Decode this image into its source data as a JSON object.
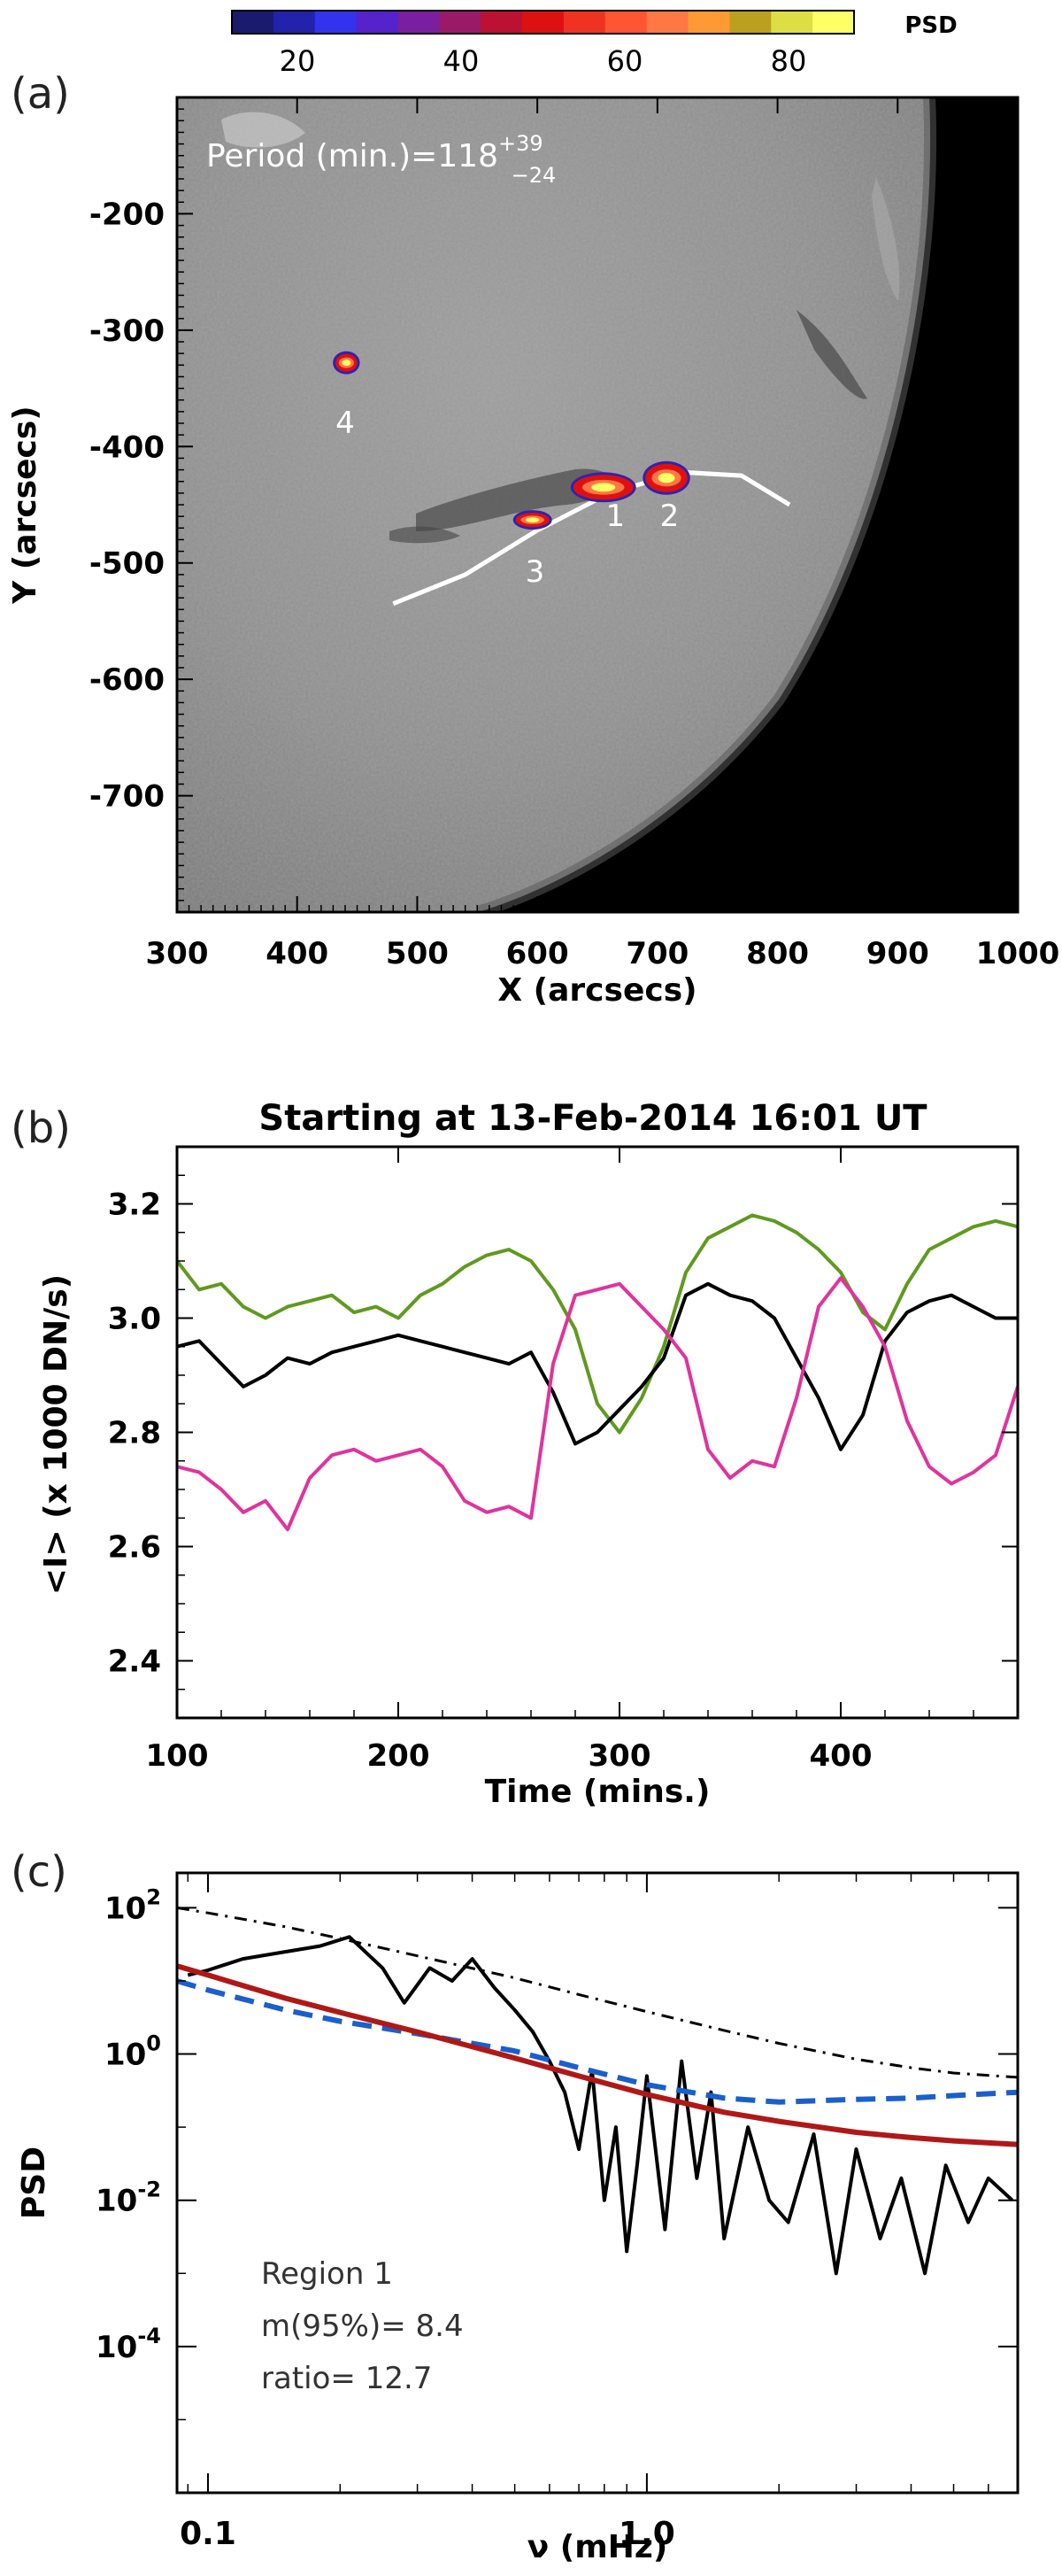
{
  "colorbar": {
    "label": "PSD",
    "ticks": [
      20,
      40,
      60,
      80
    ],
    "range": [
      12,
      88
    ],
    "colors": [
      "#1a1a6e",
      "#2222aa",
      "#3333ee",
      "#5522cc",
      "#7a1fa0",
      "#991a66",
      "#bb1133",
      "#dd1111",
      "#ee3322",
      "#ff5533",
      "#ff7744",
      "#ff9933",
      "#bba020",
      "#dddd44",
      "#ffff66"
    ]
  },
  "panel_a": {
    "panel_label": "(a)",
    "period_prefix": "Period (min.)=118",
    "period_sup": "+39",
    "period_sub": "−24",
    "xlabel": "X (arcsecs)",
    "ylabel": "Y (arcsecs)",
    "xticks": [
      "300",
      "400",
      "500",
      "600",
      "700",
      "800",
      "900",
      "1000"
    ],
    "yticks": [
      "-200",
      "-300",
      "-400",
      "-500",
      "-600",
      "-700"
    ],
    "xlim": [
      300,
      1000
    ],
    "ylim": [
      -800,
      -100
    ],
    "regions": [
      {
        "label": "1",
        "x": 665,
        "y": -450
      },
      {
        "label": "2",
        "x": 710,
        "y": -450
      },
      {
        "label": "3",
        "x": 598,
        "y": -498
      },
      {
        "label": "4",
        "x": 440,
        "y": -370
      }
    ],
    "curve_color": "#ffffff"
  },
  "panel_b": {
    "panel_label": "(b)",
    "title": "Starting at 13-Feb-2014 16:01 UT",
    "xlabel": "Time (mins.)",
    "ylabel": "<I> (x 1000 DN/s)",
    "xticks": [
      "100",
      "200",
      "300",
      "400"
    ],
    "yticks": [
      "2.4",
      "2.6",
      "2.8",
      "3.0",
      "3.2"
    ]
  },
  "panel_c": {
    "panel_label": "(c)",
    "xlabel": "ν (mHz)",
    "ylabel": "PSD",
    "xticks": [
      "0.1",
      "1.0"
    ],
    "yticks": [
      {
        "base": "10",
        "exp": "2"
      },
      {
        "base": "10",
        "exp": "0"
      },
      {
        "base": "10",
        "exp": "-2"
      },
      {
        "base": "10",
        "exp": "-4"
      }
    ],
    "annotation": {
      "line1": "Region 1",
      "line2": "m(95%)= 8.4",
      "line3": "ratio=  12.7"
    }
  },
  "chart_data": [
    {
      "type": "heatmap",
      "title": "",
      "xlabel": "X (arcsecs)",
      "ylabel": "Y (arcsecs)",
      "xlim": [
        300,
        1000
      ],
      "ylim": [
        -800,
        -100
      ],
      "annotation": "Period (min.)=118 (+39/−24)",
      "colorbar": {
        "label": "PSD",
        "range": [
          12,
          88
        ]
      },
      "regions": [
        "1",
        "2",
        "3",
        "4"
      ]
    },
    {
      "type": "line",
      "title": "Starting at 13-Feb-2014 16:01 UT",
      "xlabel": "Time (mins.)",
      "ylabel": "<I> (x 1000 DN/s)",
      "xlim": [
        100,
        480
      ],
      "ylim": [
        2.3,
        3.3
      ],
      "grid": false,
      "series": [
        {
          "color": "#5f9a1e",
          "x": [
            100,
            110,
            120,
            130,
            140,
            150,
            160,
            170,
            180,
            190,
            200,
            210,
            220,
            230,
            240,
            250,
            260,
            270,
            280,
            290,
            300,
            310,
            320,
            330,
            340,
            350,
            360,
            370,
            380,
            390,
            400,
            410,
            420,
            430,
            440,
            450,
            460,
            470,
            480
          ],
          "values": [
            3.1,
            3.05,
            3.06,
            3.02,
            3.0,
            3.02,
            3.03,
            3.04,
            3.01,
            3.02,
            3.0,
            3.04,
            3.06,
            3.09,
            3.11,
            3.12,
            3.1,
            3.05,
            2.98,
            2.85,
            2.8,
            2.86,
            2.95,
            3.08,
            3.14,
            3.16,
            3.18,
            3.17,
            3.15,
            3.12,
            3.08,
            3.01,
            2.98,
            3.06,
            3.12,
            3.14,
            3.16,
            3.17,
            3.16
          ]
        },
        {
          "color": "#000000",
          "x": [
            100,
            110,
            120,
            130,
            140,
            150,
            160,
            170,
            180,
            190,
            200,
            210,
            220,
            230,
            240,
            250,
            260,
            270,
            280,
            290,
            300,
            310,
            320,
            330,
            340,
            350,
            360,
            370,
            380,
            390,
            400,
            410,
            420,
            430,
            440,
            450,
            460,
            470,
            480
          ],
          "values": [
            2.95,
            2.96,
            2.92,
            2.88,
            2.9,
            2.93,
            2.92,
            2.94,
            2.95,
            2.96,
            2.97,
            2.96,
            2.95,
            2.94,
            2.93,
            2.92,
            2.94,
            2.87,
            2.78,
            2.8,
            2.84,
            2.88,
            2.93,
            3.04,
            3.06,
            3.04,
            3.03,
            3.0,
            2.93,
            2.86,
            2.77,
            2.83,
            2.96,
            3.01,
            3.03,
            3.04,
            3.02,
            3.0,
            3.0
          ]
        },
        {
          "color": "#e0339c",
          "x": [
            100,
            110,
            120,
            130,
            140,
            150,
            160,
            170,
            180,
            190,
            200,
            210,
            220,
            230,
            240,
            250,
            260,
            270,
            280,
            290,
            300,
            310,
            320,
            330,
            340,
            350,
            360,
            370,
            380,
            390,
            400,
            410,
            420,
            430,
            440,
            450,
            460,
            470,
            480
          ],
          "values": [
            2.74,
            2.73,
            2.7,
            2.66,
            2.68,
            2.63,
            2.72,
            2.76,
            2.77,
            2.75,
            2.76,
            2.77,
            2.74,
            2.68,
            2.66,
            2.67,
            2.65,
            2.92,
            3.04,
            3.05,
            3.06,
            3.02,
            2.98,
            2.93,
            2.77,
            2.72,
            2.75,
            2.74,
            2.86,
            3.02,
            3.07,
            3.02,
            2.95,
            2.82,
            2.74,
            2.71,
            2.73,
            2.76,
            2.88
          ]
        }
      ]
    },
    {
      "type": "line",
      "title": "",
      "xlabel": "ν (mHz)",
      "ylabel": "PSD",
      "xscale": "log",
      "yscale": "log",
      "xlim": [
        0.085,
        7.0
      ],
      "ylim": [
        1e-06,
        300
      ],
      "series": [
        {
          "color": "#000000",
          "style": "solid",
          "x": [
            0.09,
            0.1,
            0.12,
            0.15,
            0.18,
            0.21,
            0.25,
            0.28,
            0.32,
            0.36,
            0.4,
            0.45,
            0.5,
            0.55,
            0.6,
            0.65,
            0.7,
            0.75,
            0.8,
            0.85,
            0.9,
            0.95,
            1.0,
            1.1,
            1.2,
            1.3,
            1.4,
            1.5,
            1.7,
            1.9,
            2.1,
            2.4,
            2.7,
            3.0,
            3.4,
            3.8,
            4.3,
            4.8,
            5.4,
            6.0,
            6.8
          ],
          "values": [
            12,
            14,
            20,
            25,
            30,
            40,
            15,
            5,
            15,
            10,
            20,
            8,
            4,
            2,
            0.8,
            0.3,
            0.05,
            0.6,
            0.01,
            0.1,
            0.002,
            0.03,
            0.5,
            0.004,
            0.8,
            0.02,
            0.3,
            0.003,
            0.1,
            0.01,
            0.005,
            0.08,
            0.001,
            0.05,
            0.003,
            0.02,
            0.001,
            0.03,
            0.005,
            0.02,
            0.01
          ]
        },
        {
          "color": "#000000",
          "style": "dashdot",
          "x": [
            0.085,
            0.1,
            0.15,
            0.2,
            0.3,
            0.5,
            0.7,
            1.0,
            1.5,
            2.0,
            3.0,
            4.0,
            5.0,
            7.0
          ],
          "values": [
            100,
            85,
            55,
            38,
            22,
            11,
            6.5,
            3.8,
            2.1,
            1.4,
            0.85,
            0.65,
            0.55,
            0.48
          ]
        },
        {
          "color": "#1a5fcc",
          "style": "dashed",
          "x": [
            0.085,
            0.1,
            0.15,
            0.2,
            0.3,
            0.5,
            0.7,
            1.0,
            1.5,
            2.0,
            3.0,
            4.0,
            5.0,
            7.0
          ],
          "values": [
            10,
            7.5,
            4,
            2.8,
            1.9,
            1.1,
            0.65,
            0.38,
            0.25,
            0.22,
            0.24,
            0.25,
            0.27,
            0.3
          ]
        },
        {
          "color": "#b01818",
          "style": "solid",
          "x": [
            0.085,
            0.1,
            0.15,
            0.2,
            0.3,
            0.5,
            0.7,
            1.0,
            1.5,
            2.0,
            3.0,
            4.0,
            5.0,
            7.0
          ],
          "values": [
            16,
            12,
            5.8,
            3.7,
            2.0,
            0.88,
            0.5,
            0.28,
            0.16,
            0.12,
            0.085,
            0.072,
            0.065,
            0.058
          ]
        }
      ]
    }
  ]
}
